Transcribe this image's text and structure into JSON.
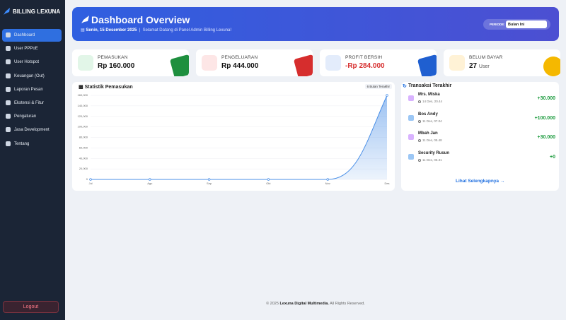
{
  "sidebar": {
    "brand": "BILLING LEXUNA",
    "menu": [
      "Dashboard",
      "User PPPoE",
      "User Hotspot",
      "Keuangan (Out)",
      "Laporan Pesan",
      "Ekstensi & Fitur",
      "Pengaturan",
      "Jasa Development",
      "Tentang"
    ],
    "logout": "Logout"
  },
  "header": {
    "title": "Dashboard Overview",
    "date": "Senin, 15 Desember 2025",
    "welcome": "Selamat Datang di Panel Admin Billing Lexuna!",
    "period_label": "PERIODE:",
    "period_value": "Bulan Ini"
  },
  "stats": [
    {
      "label": "PEMASUKAN",
      "value": "Rp 160.000"
    },
    {
      "label": "PENGELUARAN",
      "value": "Rp 444.000"
    },
    {
      "label": "PROFIT BERSIH",
      "value": "-Rp 284.000"
    },
    {
      "label": "BELUM BAYAR",
      "value": "27",
      "unit": "User"
    }
  ],
  "chart": {
    "type": "line",
    "title": "Statistik Pemasukan",
    "badge": "6 Bulan Terakhir",
    "categories": [
      "Jul",
      "Agu",
      "Sep",
      "Okt",
      "Nov",
      "Des"
    ],
    "values": [
      0,
      0,
      0,
      0,
      0,
      160000
    ],
    "color": "#4a8fe7",
    "ylim": [
      0,
      160000
    ],
    "yticks": [
      0,
      {
        "value": 20000,
        "label": "20,000"
      },
      {
        "value": 40000,
        "label": "40,000"
      },
      {
        "value": 60000,
        "label": "60,000"
      },
      {
        "value": 80000,
        "label": "80,000"
      },
      {
        "value": 100000,
        "label": "100,000"
      },
      {
        "value": 120000,
        "label": "120,000"
      },
      {
        "value": 140000,
        "label": "140,000"
      },
      {
        "value": 160000,
        "label": "160,000"
      }
    ],
    "grid": true
  },
  "transactions": {
    "title": "Transaksi Terakhir",
    "items": [
      {
        "name": "Mrs. Miska",
        "time": "14 Des, 20.44",
        "amount": "+30.000"
      },
      {
        "name": "Bos Andy",
        "time": "11 Des, 07.04",
        "amount": "+100.000"
      },
      {
        "name": "Mbah Jan",
        "time": "11 Des, 05.48",
        "amount": "+30.000"
      },
      {
        "name": "Security Rusun",
        "time": "11 Des, 05.31",
        "amount": "+0"
      }
    ],
    "more": "Lihat Selengkapnya"
  },
  "footer": {
    "prefix": "© 2025",
    "company": "Lexuna Digital Multimedia.",
    "suffix": "All Rights Reserved."
  }
}
